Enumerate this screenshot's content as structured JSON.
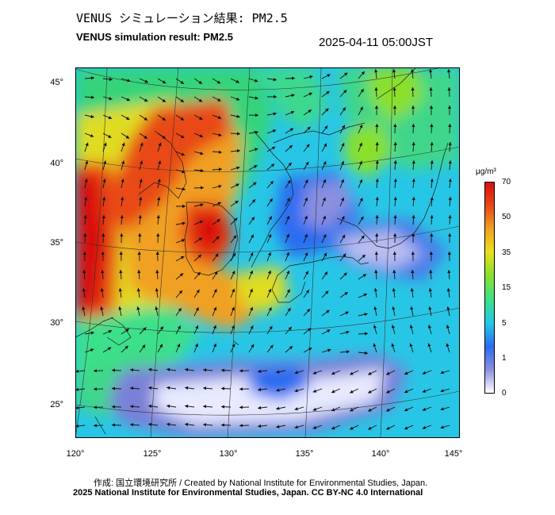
{
  "header": {
    "title_jp": "VENUS シミュレーション結果: PM2.5",
    "title_en": "VENUS simulation result: PM2.5",
    "timestamp": "2025-04-11 05:00JST"
  },
  "map": {
    "lat_labels": [
      "45°",
      "40°",
      "35°",
      "30°",
      "25°"
    ],
    "lon_labels": [
      "120°",
      "125°",
      "130°",
      "135°",
      "140°",
      "145°"
    ]
  },
  "colorbar": {
    "unit": "μg/m³",
    "ticks": [
      "70",
      "50",
      "35",
      "15",
      "5",
      "1",
      "0"
    ],
    "colors": [
      "#ffffff",
      "#8a8fe0",
      "#2a6cf0",
      "#22c8e8",
      "#3ce08a",
      "#8be02c",
      "#e8e020",
      "#f0a020",
      "#e84818",
      "#d81010"
    ]
  },
  "credits": {
    "line1": "作成: 国立環境研究所 / Created by National Institute for Environmental Studies, Japan.",
    "line2": "2025 National Institute for Environmental Studies, Japan. CC BY-NC 4.0 International"
  }
}
